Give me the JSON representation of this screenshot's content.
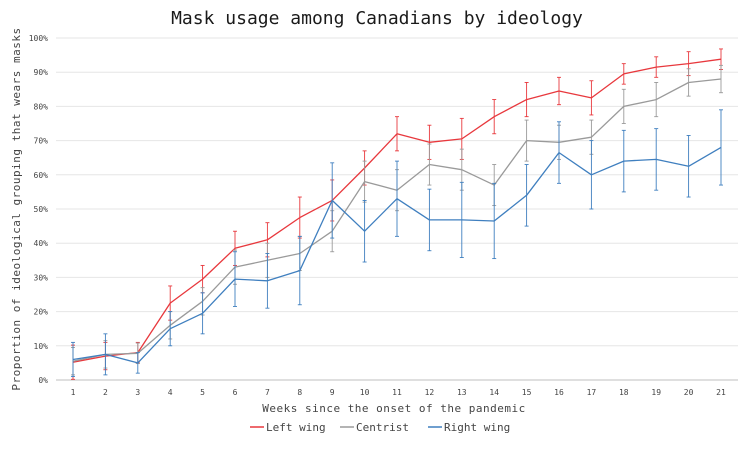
{
  "chart_data": {
    "type": "line",
    "title": "Mask usage among Canadians by ideology",
    "xlabel": "Weeks since the onset of the pandemic",
    "ylabel": "Proportion of ideological grouping that wears masks",
    "x": [
      1,
      2,
      3,
      4,
      5,
      6,
      7,
      8,
      9,
      10,
      11,
      12,
      13,
      14,
      15,
      16,
      17,
      18,
      19,
      20,
      21
    ],
    "x_tick_labels": [
      "1",
      "2",
      "3",
      "4",
      "5",
      "6",
      "7",
      "8",
      "9",
      "10",
      "11",
      "12",
      "13",
      "14",
      "15",
      "16",
      "17",
      "18",
      "19",
      "20",
      "21"
    ],
    "ylim": [
      0,
      100
    ],
    "y_ticks": [
      0,
      10,
      20,
      30,
      40,
      50,
      60,
      70,
      80,
      90,
      100
    ],
    "y_tick_labels": [
      "0%",
      "10%",
      "20%",
      "30%",
      "40%",
      "50%",
      "60%",
      "70%",
      "80%",
      "90%",
      "100%"
    ],
    "grid": "horizontal",
    "legend_position": "bottom",
    "series": [
      {
        "name": "Left wing",
        "color": "#e8383d",
        "values": [
          5.2,
          7.0,
          8.0,
          22.5,
          29.5,
          38.5,
          41.0,
          47.5,
          52.5,
          62.0,
          72.0,
          69.5,
          70.5,
          77.0,
          82.0,
          84.5,
          82.5,
          89.5,
          91.5,
          92.5,
          93.8
        ],
        "error": [
          5,
          4,
          3,
          5,
          4,
          5,
          5,
          6,
          6,
          5,
          5,
          5,
          6,
          5,
          5,
          4,
          5,
          3,
          3,
          3.5,
          3
        ]
      },
      {
        "name": "Centrist",
        "color": "#9a9a9a",
        "values": [
          5.5,
          7.5,
          7.8,
          16.0,
          23.0,
          33.0,
          35.0,
          37.0,
          43.5,
          58.0,
          55.5,
          63.0,
          61.5,
          57.0,
          70.0,
          69.5,
          71.0,
          80.0,
          82.0,
          87.0,
          88.0
        ],
        "error": [
          4,
          4,
          3,
          4,
          4,
          5,
          5,
          5,
          6,
          6,
          6,
          6,
          6,
          6,
          6,
          5,
          5,
          5,
          5,
          4,
          4
        ]
      },
      {
        "name": "Right wing",
        "color": "#3f7fbf",
        "values": [
          6.0,
          7.5,
          5.0,
          15.0,
          19.5,
          29.5,
          29.0,
          32.0,
          52.5,
          43.5,
          53.0,
          46.8,
          46.8,
          46.5,
          54.0,
          66.5,
          60.0,
          64.0,
          64.5,
          62.5,
          68.0
        ],
        "error": [
          5,
          6,
          3,
          5,
          6,
          8,
          8,
          10,
          11,
          9,
          11,
          9,
          11,
          11,
          9,
          9,
          10,
          9,
          9,
          9,
          11
        ]
      }
    ]
  }
}
